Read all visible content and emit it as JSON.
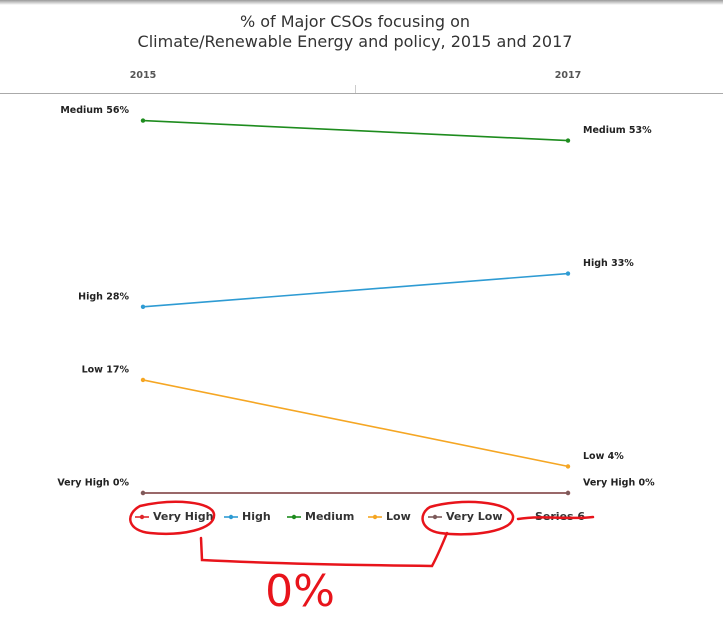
{
  "chart_data": {
    "type": "line",
    "title": [
      "% of Major CSOs focusing on",
      "Climate/Renewable Energy and policy, 2015 and 2017"
    ],
    "categories": [
      "2015",
      "2017"
    ],
    "ylim": [
      0,
      60
    ],
    "series": [
      {
        "name": "Very High",
        "color": "#e0262b",
        "values": [
          0,
          0
        ],
        "value_labels": [
          "Very High 0%",
          "Very High 0%"
        ]
      },
      {
        "name": "High",
        "color": "#2e9bd3",
        "values": [
          28,
          33
        ],
        "value_labels": [
          "High 28%",
          "High 33%"
        ]
      },
      {
        "name": "Medium",
        "color": "#1e8c1e",
        "values": [
          56,
          53
        ],
        "value_labels": [
          "Medium 56%",
          "Medium 53%"
        ]
      },
      {
        "name": "Low",
        "color": "#f5a623",
        "values": [
          17,
          4
        ],
        "value_labels": [
          "Low 17%",
          "Low 4%"
        ]
      },
      {
        "name": "Very Low",
        "color": "#7d5b5b",
        "values": [
          0,
          0
        ]
      },
      {
        "name": "Series 6",
        "values": [
          null,
          null
        ]
      }
    ],
    "annotations": [
      "0%"
    ]
  }
}
